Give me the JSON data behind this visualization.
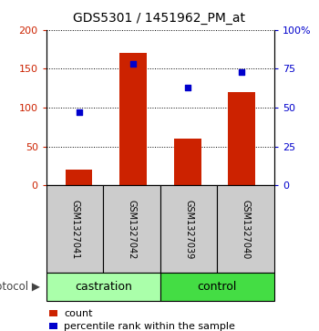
{
  "title": "GDS5301 / 1451962_PM_at",
  "samples": [
    "GSM1327041",
    "GSM1327042",
    "GSM1327039",
    "GSM1327040"
  ],
  "counts": [
    20,
    170,
    60,
    120
  ],
  "percentiles": [
    47,
    78,
    63,
    73
  ],
  "ylim_left": [
    0,
    200
  ],
  "ylim_right": [
    0,
    100
  ],
  "yticks_left": [
    0,
    50,
    100,
    150,
    200
  ],
  "ytick_labels_left": [
    "0",
    "50",
    "100",
    "150",
    "200"
  ],
  "yticks_right": [
    0,
    25,
    50,
    75,
    100
  ],
  "ytick_labels_right": [
    "0",
    "25",
    "50",
    "75",
    "100%"
  ],
  "bar_color": "#cc2200",
  "dot_color": "#0000cc",
  "protocol_groups": [
    {
      "label": "castration",
      "start": 0,
      "end": 2,
      "color": "#aaffaa"
    },
    {
      "label": "control",
      "start": 2,
      "end": 4,
      "color": "#44dd44"
    }
  ],
  "protocol_label": "protocol",
  "legend_bar_label": "count",
  "legend_dot_label": "percentile rank within the sample",
  "sample_box_color": "#cccccc",
  "sample_box_edge": "#000000",
  "title_fontsize": 10,
  "tick_fontsize": 8,
  "legend_fontsize": 8,
  "sample_fontsize": 7,
  "proto_fontsize": 9
}
